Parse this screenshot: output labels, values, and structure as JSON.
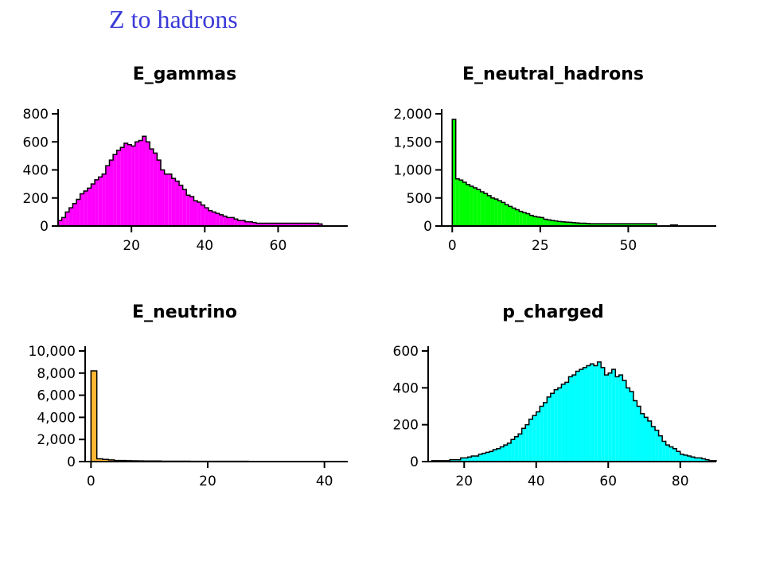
{
  "page": {
    "title": "Z to hadrons"
  },
  "chart_data": [
    {
      "type": "histogram",
      "title": "E_gammas",
      "fill": "#ff00ff",
      "xlim": [
        0,
        79
      ],
      "ylim": [
        0,
        800
      ],
      "x_ticks": [
        {
          "value": 20,
          "label": "20"
        },
        {
          "value": 40,
          "label": "40"
        },
        {
          "value": 60,
          "label": "60"
        }
      ],
      "y_ticks": [
        {
          "value": 0,
          "label": "0"
        },
        {
          "value": 200,
          "label": "200"
        },
        {
          "value": 400,
          "label": "400"
        },
        {
          "value": 600,
          "label": "600"
        },
        {
          "value": 800,
          "label": "800"
        }
      ],
      "x": [
        0,
        1,
        2,
        3,
        4,
        5,
        6,
        7,
        8,
        9,
        10,
        11,
        12,
        13,
        14,
        15,
        16,
        17,
        18,
        19,
        20,
        21,
        22,
        23,
        24,
        25,
        26,
        27,
        28,
        29,
        30,
        31,
        32,
        33,
        34,
        35,
        36,
        37,
        38,
        39,
        40,
        41,
        42,
        43,
        44,
        45,
        46,
        47,
        48,
        49,
        50,
        51,
        52,
        53,
        54,
        55,
        56,
        57,
        58,
        59,
        60,
        61,
        62,
        63,
        64,
        65,
        66,
        67,
        68,
        69,
        70,
        71
      ],
      "values": [
        40,
        60,
        100,
        130,
        160,
        190,
        230,
        250,
        270,
        300,
        330,
        350,
        370,
        430,
        470,
        510,
        540,
        560,
        590,
        580,
        570,
        600,
        610,
        640,
        600,
        550,
        520,
        470,
        400,
        370,
        370,
        340,
        320,
        290,
        260,
        220,
        210,
        180,
        170,
        150,
        130,
        110,
        100,
        90,
        80,
        70,
        60,
        60,
        50,
        40,
        40,
        30,
        30,
        25,
        20,
        20,
        20,
        20,
        20,
        20,
        20,
        20,
        20,
        20,
        20,
        20,
        20,
        20,
        20,
        20,
        20,
        15
      ]
    },
    {
      "type": "histogram",
      "title": "E_neutral_hadrons",
      "fill": "#00ff00",
      "xlim": [
        -3,
        75
      ],
      "ylim": [
        0,
        2000
      ],
      "x_ticks": [
        {
          "value": 0,
          "label": "0"
        },
        {
          "value": 25,
          "label": "25"
        },
        {
          "value": 50,
          "label": "50"
        }
      ],
      "y_ticks": [
        {
          "value": 0,
          "label": "0"
        },
        {
          "value": 500,
          "label": "500"
        },
        {
          "value": 1000,
          "label": "1,000"
        },
        {
          "value": 1500,
          "label": "1,500"
        },
        {
          "value": 2000,
          "label": "2,000"
        }
      ],
      "x": [
        0,
        1,
        2,
        3,
        4,
        5,
        6,
        7,
        8,
        9,
        10,
        11,
        12,
        13,
        14,
        15,
        16,
        17,
        18,
        19,
        20,
        21,
        22,
        23,
        24,
        25,
        26,
        27,
        28,
        29,
        30,
        31,
        32,
        33,
        34,
        35,
        36,
        37,
        38,
        39,
        40,
        41,
        42,
        43,
        44,
        45,
        46,
        47,
        48,
        49,
        50,
        51,
        52,
        53,
        54,
        55,
        56,
        57,
        58,
        59,
        60,
        61,
        62,
        63,
        64
      ],
      "values": [
        1900,
        840,
        820,
        780,
        740,
        710,
        680,
        650,
        610,
        580,
        540,
        500,
        480,
        450,
        420,
        380,
        350,
        320,
        290,
        260,
        240,
        220,
        190,
        170,
        160,
        150,
        120,
        110,
        100,
        90,
        80,
        75,
        70,
        65,
        60,
        55,
        50,
        50,
        45,
        40,
        40,
        40,
        40,
        40,
        40,
        40,
        40,
        40,
        40,
        40,
        40,
        40,
        40,
        40,
        40,
        40,
        40,
        40,
        0,
        0,
        0,
        0,
        20,
        20,
        0
      ]
    },
    {
      "type": "histogram",
      "title": "E_neutrino",
      "fill": "#ffb833",
      "xlim": [
        -1,
        44
      ],
      "ylim": [
        0,
        10000
      ],
      "x_ticks": [
        {
          "value": 0,
          "label": "0"
        },
        {
          "value": 20,
          "label": "20"
        },
        {
          "value": 40,
          "label": "40"
        }
      ],
      "y_ticks": [
        {
          "value": 0,
          "label": "0"
        },
        {
          "value": 2000,
          "label": "2,000"
        },
        {
          "value": 4000,
          "label": "4,000"
        },
        {
          "value": 6000,
          "label": "6,000"
        },
        {
          "value": 8000,
          "label": "8,000"
        },
        {
          "value": 10000,
          "label": "10,000"
        }
      ],
      "x": [
        0,
        1,
        2,
        3,
        4,
        5,
        6,
        7,
        8,
        9,
        10,
        11,
        12,
        13,
        14,
        15,
        16,
        17,
        18,
        19,
        20,
        21,
        22,
        23,
        24,
        25,
        26,
        27,
        28,
        29,
        30,
        31,
        32,
        33,
        34,
        35
      ],
      "values": [
        8200,
        250,
        200,
        150,
        100,
        100,
        80,
        70,
        60,
        50,
        50,
        50,
        40,
        40,
        40,
        40,
        40,
        30,
        30,
        30,
        30,
        30,
        30,
        30,
        30,
        30,
        30,
        20,
        20,
        20,
        20,
        20,
        20,
        20,
        20,
        20
      ]
    },
    {
      "type": "histogram",
      "title": "p_charged",
      "fill": "#00ffff",
      "xlim": [
        10,
        90
      ],
      "ylim": [
        0,
        600
      ],
      "x_ticks": [
        {
          "value": 20,
          "label": "20"
        },
        {
          "value": 40,
          "label": "40"
        },
        {
          "value": 60,
          "label": "60"
        },
        {
          "value": 80,
          "label": "80"
        }
      ],
      "y_ticks": [
        {
          "value": 0,
          "label": "0"
        },
        {
          "value": 200,
          "label": "200"
        },
        {
          "value": 400,
          "label": "400"
        },
        {
          "value": 600,
          "label": "600"
        }
      ],
      "x": [
        11,
        12,
        13,
        14,
        15,
        16,
        17,
        18,
        19,
        20,
        21,
        22,
        23,
        24,
        25,
        26,
        27,
        28,
        29,
        30,
        31,
        32,
        33,
        34,
        35,
        36,
        37,
        38,
        39,
        40,
        41,
        42,
        43,
        44,
        45,
        46,
        47,
        48,
        49,
        50,
        51,
        52,
        53,
        54,
        55,
        56,
        57,
        58,
        59,
        60,
        61,
        62,
        63,
        64,
        65,
        66,
        67,
        68,
        69,
        70,
        71,
        72,
        73,
        74,
        75,
        76,
        77,
        78,
        79,
        80,
        81,
        82,
        83,
        84,
        85,
        86,
        87,
        88,
        89
      ],
      "values": [
        5,
        5,
        5,
        5,
        5,
        10,
        10,
        10,
        20,
        20,
        25,
        30,
        30,
        40,
        45,
        50,
        55,
        65,
        70,
        80,
        90,
        100,
        120,
        135,
        150,
        180,
        200,
        230,
        250,
        270,
        300,
        320,
        350,
        370,
        390,
        400,
        420,
        430,
        460,
        470,
        490,
        500,
        510,
        520,
        530,
        520,
        540,
        510,
        470,
        480,
        500,
        460,
        470,
        440,
        400,
        380,
        330,
        300,
        260,
        240,
        220,
        190,
        170,
        140,
        110,
        90,
        80,
        70,
        55,
        40,
        35,
        30,
        25,
        20,
        20,
        15,
        10,
        5,
        5
      ]
    }
  ]
}
